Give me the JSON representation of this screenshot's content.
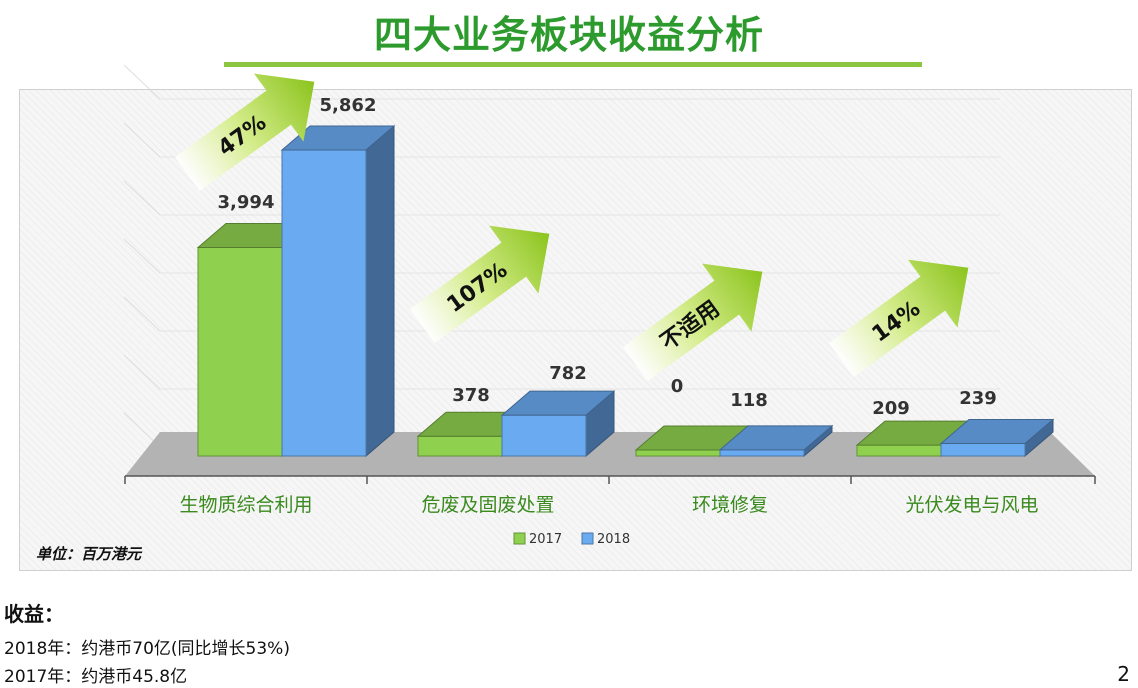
{
  "title": "四大业务板块收益分析",
  "unit_note": "单位：百万港元",
  "revenue": {
    "heading": "收益：",
    "lines": [
      "2018年：约港币70亿(同比增长53%)",
      "2017年：约港币45.8亿"
    ]
  },
  "page_number": "2",
  "colors": {
    "title": "#2d9a2d",
    "bar_2017": "#8fd14f",
    "bar_2018": "#6aaaf0",
    "arrow": "#9bd128"
  },
  "chart_data": {
    "type": "bar",
    "categories": [
      "生物质综合利用",
      "危废及固废处置",
      "环境修复",
      "光伏发电与风电"
    ],
    "series": [
      {
        "name": "2017",
        "values": [
          3994,
          378,
          0,
          209
        ],
        "labels": [
          "3,994",
          "378",
          "0",
          "209"
        ]
      },
      {
        "name": "2018",
        "values": [
          5862,
          782,
          118,
          239
        ],
        "labels": [
          "5,862",
          "782",
          "118",
          "239"
        ]
      }
    ],
    "growth_labels": [
      "47%",
      "107%",
      "不适用",
      "14%"
    ],
    "ylim": [
      0,
      6000
    ],
    "legend_position": "bottom",
    "grid": true
  }
}
